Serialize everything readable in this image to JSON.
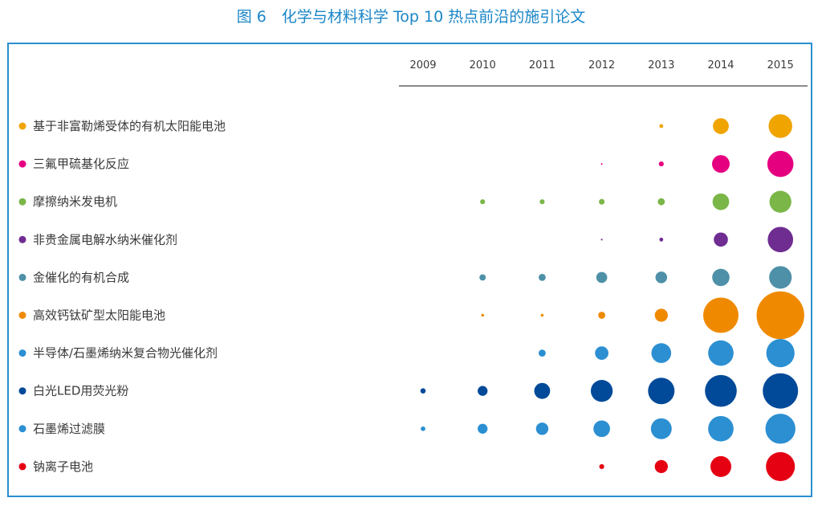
{
  "figure_title": "图 6　化学与材料科学 Top 10 热点前沿的施引论文",
  "chart_data": {
    "type": "scatter",
    "subtype": "bubble-matrix",
    "title": "图 6　化学与材料科学 Top 10 热点前沿的施引论文",
    "x": [
      "2009",
      "2010",
      "2011",
      "2012",
      "2013",
      "2014",
      "2015"
    ],
    "value_note": "relative bubble size (0-1) estimated from bubble diameter; no numeric scale is printed",
    "series": [
      {
        "name": "基于非富勒烯受体的有机太阳能电池",
        "color": "#f0a400",
        "values": [
          0,
          0,
          0,
          0,
          0.11,
          0.45,
          0.67
        ]
      },
      {
        "name": "三氟甲硫基化反应",
        "color": "#e5007f",
        "values": [
          0,
          0,
          0,
          0.04,
          0.14,
          0.5,
          0.74
        ]
      },
      {
        "name": "摩擦纳米发电机",
        "color": "#7ab648",
        "values": [
          0,
          0.14,
          0.14,
          0.16,
          0.2,
          0.47,
          0.62
        ]
      },
      {
        "name": "非贵金属电解水纳米催化剂",
        "color": "#6f2c91",
        "values": [
          0,
          0,
          0,
          0.05,
          0.11,
          0.4,
          0.72
        ]
      },
      {
        "name": "金催化的有机合成",
        "color": "#4d90a8",
        "values": [
          0,
          0.18,
          0.2,
          0.31,
          0.33,
          0.49,
          0.64
        ]
      },
      {
        "name": "高效钙钛矿型太阳能电池",
        "color": "#ef8a00",
        "values": [
          0,
          0.08,
          0.08,
          0.2,
          0.37,
          1.0,
          1.35
        ]
      },
      {
        "name": "半导体/石墨烯纳米复合物光催化剂",
        "color": "#2b8fd2",
        "values": [
          0,
          0,
          0.2,
          0.38,
          0.56,
          0.72,
          0.8
        ]
      },
      {
        "name": "白光LED用荧光粉",
        "color": "#004a99",
        "values": [
          0.15,
          0.28,
          0.45,
          0.62,
          0.75,
          0.9,
          1.0
        ]
      },
      {
        "name": "石墨烯过滤膜",
        "color": "#2b8fd2",
        "values": [
          0.13,
          0.28,
          0.35,
          0.47,
          0.59,
          0.72,
          0.85
        ]
      },
      {
        "name": "钠离子电池",
        "color": "#e50012",
        "values": [
          0,
          0,
          0,
          0.14,
          0.37,
          0.59,
          0.82
        ]
      }
    ]
  }
}
